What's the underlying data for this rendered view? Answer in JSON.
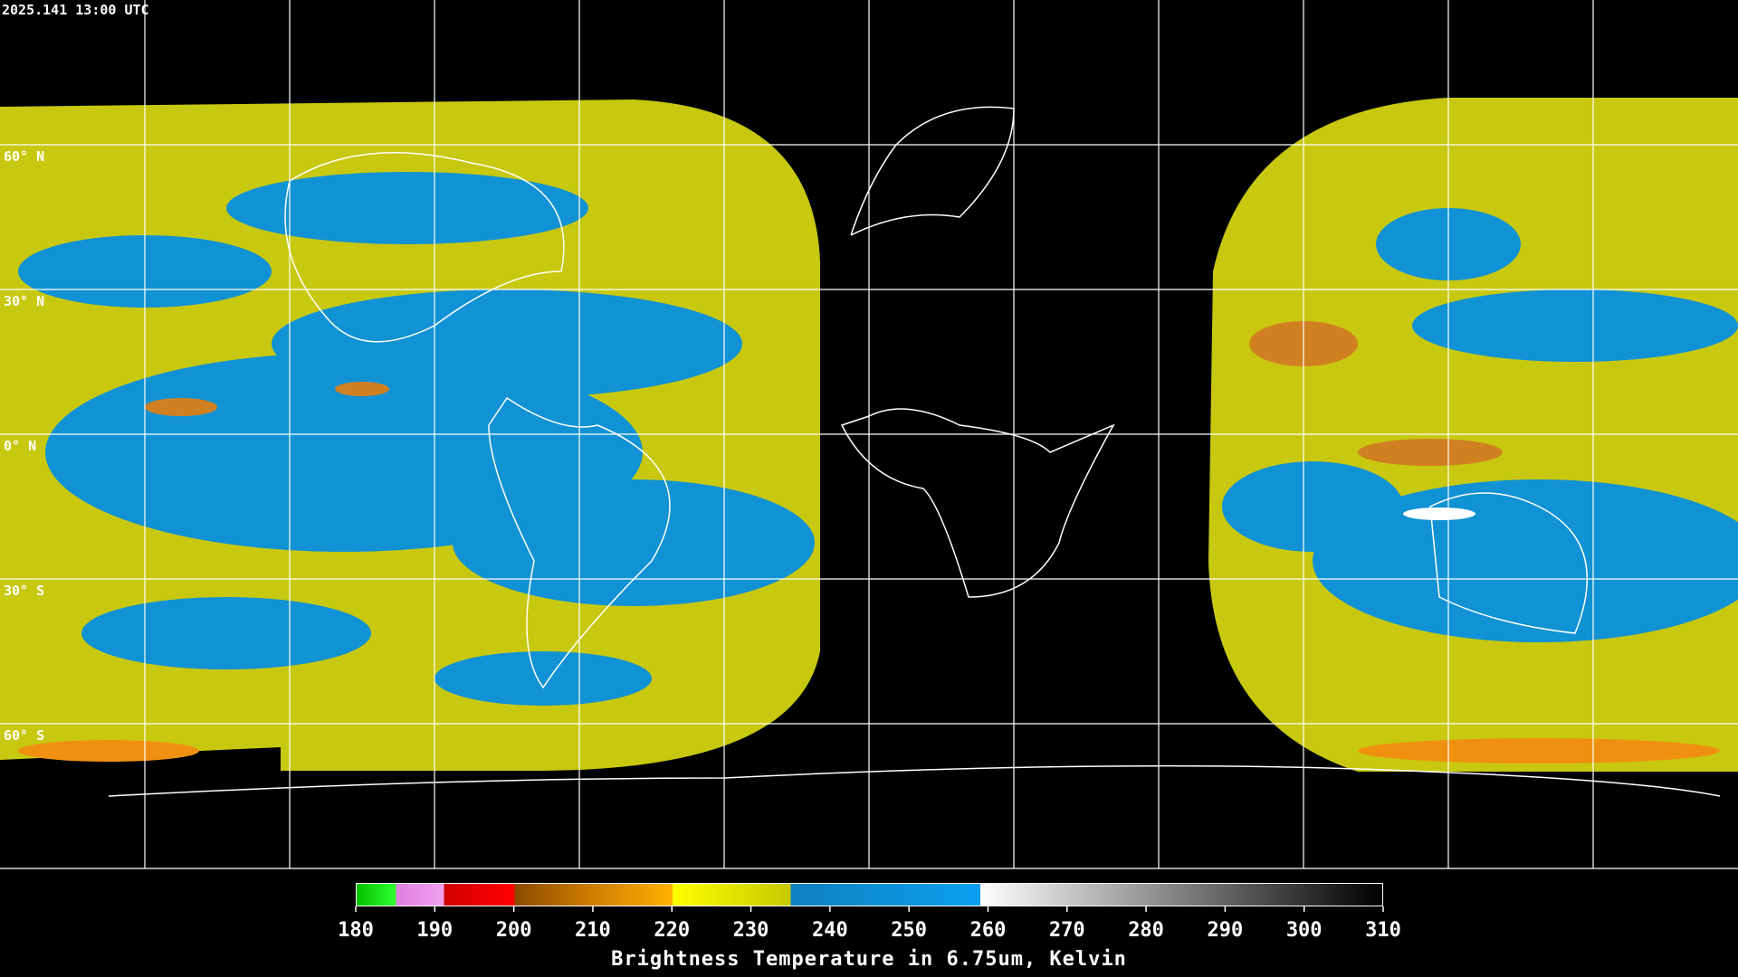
{
  "header": {
    "timestamp": "2025.141 13:00 UTC"
  },
  "map": {
    "latitude_labels": [
      "60° N",
      "30° N",
      "0° N",
      "30° S",
      "60° S"
    ]
  },
  "colorbar": {
    "ticks": [
      180,
      190,
      200,
      210,
      220,
      230,
      240,
      250,
      260,
      270,
      280,
      290,
      300,
      310
    ],
    "label": "Brightness Temperature in 6.75um, Kelvin"
  }
}
